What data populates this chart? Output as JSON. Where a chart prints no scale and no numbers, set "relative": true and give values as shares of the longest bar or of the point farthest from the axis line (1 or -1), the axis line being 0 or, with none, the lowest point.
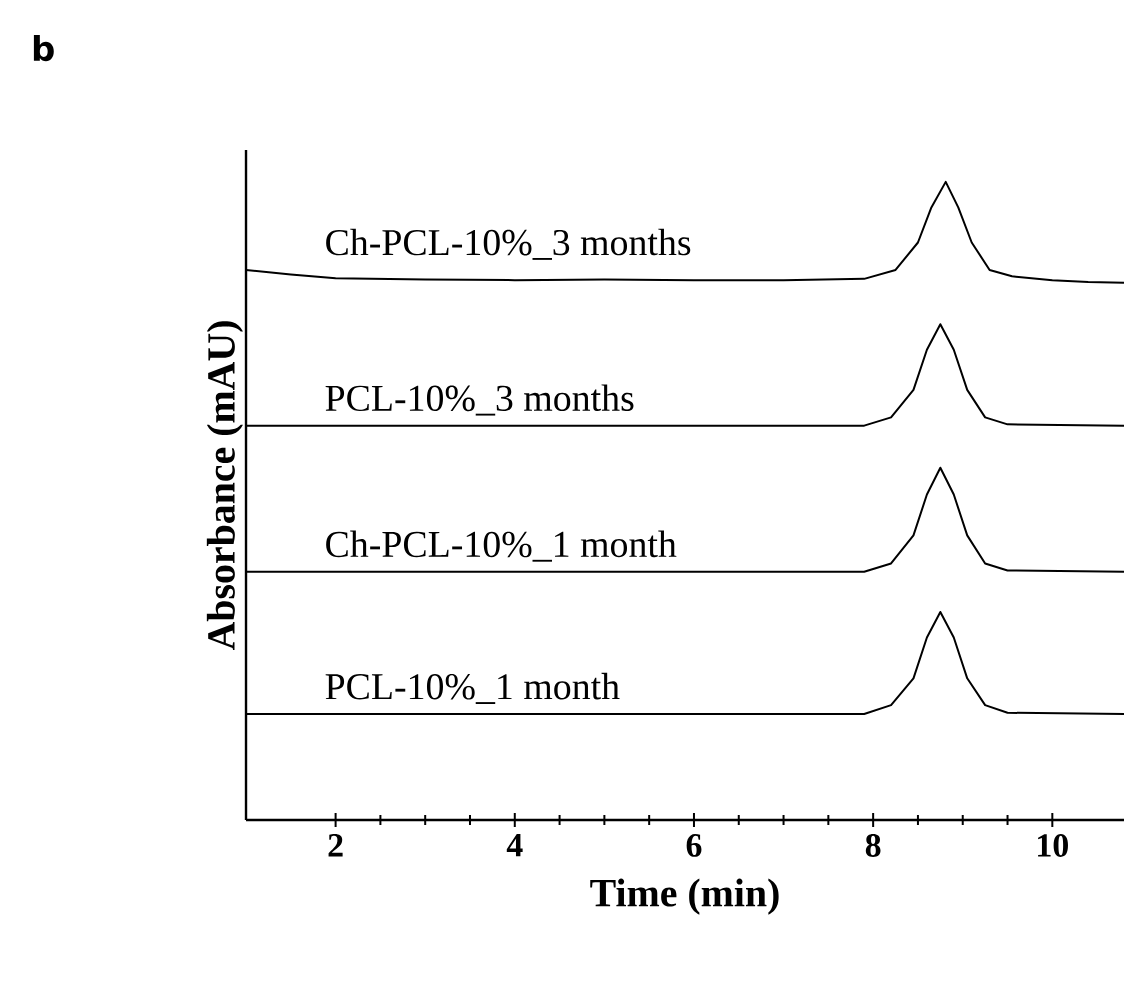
{
  "chart_data": {
    "type": "line",
    "relative": true,
    "xlabel": "Time (min)",
    "ylabel": "Absorbance (mAU)",
    "annotations": [
      "b"
    ],
    "xlim": [
      1,
      10.8
    ],
    "xticks": [
      2,
      4,
      6,
      8,
      10
    ],
    "grid": false,
    "legend": false,
    "marker": "none",
    "line_style": "solid",
    "series": [
      {
        "name": "PCL-10%_1 month",
        "color": "#000000",
        "x": [
          1,
          7.9,
          8.2,
          8.45,
          8.6,
          8.75,
          8.9,
          9.05,
          9.25,
          9.5,
          10.8
        ],
        "values": [
          0.166,
          0.166,
          0.18,
          0.222,
          0.286,
          0.326,
          0.286,
          0.222,
          0.18,
          0.168,
          0.166
        ]
      },
      {
        "name": "Ch-PCL-10%_1 month",
        "color": "#000000",
        "x": [
          1,
          7.9,
          8.2,
          8.45,
          8.6,
          8.75,
          8.9,
          9.05,
          9.25,
          9.5,
          10.8
        ],
        "values": [
          0.389,
          0.389,
          0.402,
          0.446,
          0.51,
          0.552,
          0.51,
          0.446,
          0.402,
          0.391,
          0.389
        ]
      },
      {
        "name": "PCL-10%_3 months",
        "color": "#000000",
        "x": [
          1,
          7.9,
          8.2,
          8.45,
          8.6,
          8.75,
          8.9,
          9.05,
          9.25,
          9.5,
          10.8
        ],
        "values": [
          0.618,
          0.618,
          0.631,
          0.674,
          0.737,
          0.777,
          0.737,
          0.674,
          0.631,
          0.62,
          0.618
        ]
      },
      {
        "name": "Ch-PCL-10%_3 months",
        "color": "#000000",
        "x": [
          1,
          1.5,
          2,
          3,
          4,
          5,
          6,
          7,
          7.9,
          8.25,
          8.5,
          8.65,
          8.81,
          8.95,
          9.1,
          9.3,
          9.55,
          10,
          10.4,
          10.8
        ],
        "values": [
          0.862,
          0.855,
          0.849,
          0.847,
          0.846,
          0.847,
          0.846,
          0.846,
          0.848,
          0.862,
          0.905,
          0.96,
          1.0,
          0.96,
          0.905,
          0.862,
          0.852,
          0.846,
          0.843,
          0.842
        ]
      }
    ]
  }
}
